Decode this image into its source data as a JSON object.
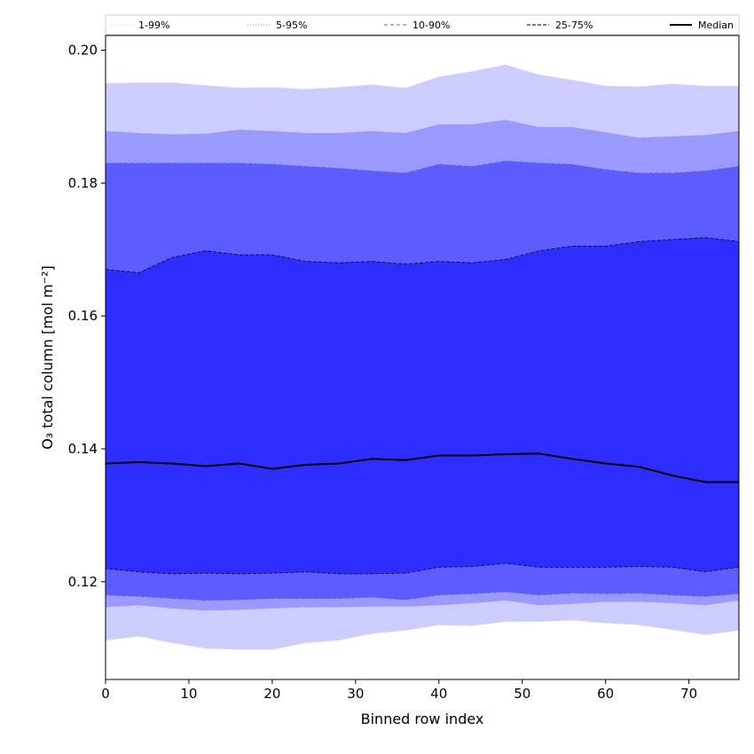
{
  "chart_data": {
    "type": "area",
    "title": "",
    "xlabel": "Binned row index",
    "ylabel": "O₃ total column [mol m⁻²]",
    "xlim": [
      0,
      76
    ],
    "ylim": [
      0.1053,
      0.2022
    ],
    "xticks": [
      0,
      10,
      20,
      30,
      40,
      50,
      60,
      70
    ],
    "yticks": [
      0.12,
      0.14,
      0.16,
      0.18,
      0.2
    ],
    "xtick_labels": [
      "0",
      "10",
      "20",
      "30",
      "40",
      "50",
      "60",
      "70"
    ],
    "ytick_labels": [
      "0.12",
      "0.14",
      "0.16",
      "0.18",
      "0.20"
    ],
    "grid": false,
    "legend_position": "top",
    "colors": {
      "band_1_99": "#ccccff",
      "band_5_95": "#9999ff",
      "band_10_90": "#5c5cff",
      "band_25_75": "#2d2dff",
      "median": "#000000"
    },
    "x": [
      0,
      4,
      8,
      12,
      16,
      20,
      24,
      28,
      32,
      36,
      40,
      44,
      48,
      52,
      56,
      60,
      64,
      68,
      72,
      76
    ],
    "series": [
      {
        "name": "1-99%",
        "lower": [
          0.1112,
          0.1118,
          0.1108,
          0.11,
          0.1098,
          0.1098,
          0.1108,
          0.1112,
          0.1122,
          0.1127,
          0.1135,
          0.1134,
          0.114,
          0.114,
          0.1142,
          0.1138,
          0.1135,
          0.1128,
          0.112,
          0.1127
        ],
        "upper": [
          0.195,
          0.1951,
          0.1951,
          0.1947,
          0.1943,
          0.1944,
          0.1941,
          0.1944,
          0.1948,
          0.1943,
          0.196,
          0.1968,
          0.1978,
          0.1963,
          0.1955,
          0.1946,
          0.1945,
          0.1949,
          0.1946,
          0.1946
        ]
      },
      {
        "name": "5-95%",
        "lower": [
          0.1162,
          0.1165,
          0.116,
          0.1157,
          0.1158,
          0.116,
          0.1162,
          0.1162,
          0.1163,
          0.1163,
          0.1165,
          0.1168,
          0.1172,
          0.1165,
          0.1167,
          0.117,
          0.117,
          0.1168,
          0.1165,
          0.1172
        ],
        "upper": [
          0.1878,
          0.1875,
          0.1873,
          0.1874,
          0.188,
          0.1878,
          0.1875,
          0.1875,
          0.1878,
          0.1875,
          0.1888,
          0.1888,
          0.1895,
          0.1884,
          0.1884,
          0.1876,
          0.1868,
          0.187,
          0.1872,
          0.1878
        ]
      },
      {
        "name": "10-90%",
        "lower": [
          0.118,
          0.1178,
          0.1175,
          0.1172,
          0.1173,
          0.1175,
          0.1175,
          0.1175,
          0.1177,
          0.1173,
          0.118,
          0.1182,
          0.1185,
          0.118,
          0.1183,
          0.1182,
          0.1183,
          0.118,
          0.1178,
          0.1182
        ],
        "upper": [
          0.183,
          0.183,
          0.183,
          0.183,
          0.183,
          0.1828,
          0.1825,
          0.1822,
          0.1818,
          0.1815,
          0.1828,
          0.1825,
          0.1833,
          0.183,
          0.1828,
          0.182,
          0.1815,
          0.1815,
          0.1818,
          0.1825
        ]
      },
      {
        "name": "25-75%",
        "lower": [
          0.122,
          0.1215,
          0.1212,
          0.1213,
          0.1212,
          0.1213,
          0.1215,
          0.1212,
          0.1212,
          0.1213,
          0.1222,
          0.1223,
          0.1228,
          0.1222,
          0.1222,
          0.1222,
          0.1223,
          0.1222,
          0.1215,
          0.1222
        ],
        "upper": [
          0.167,
          0.1665,
          0.1688,
          0.1698,
          0.1692,
          0.1692,
          0.1682,
          0.168,
          0.1682,
          0.1678,
          0.1682,
          0.168,
          0.1685,
          0.1698,
          0.1705,
          0.1705,
          0.1712,
          0.1715,
          0.1718,
          0.1712
        ]
      },
      {
        "name": "Median",
        "values": [
          0.1378,
          0.138,
          0.1378,
          0.1374,
          0.1378,
          0.137,
          0.1376,
          0.1378,
          0.1385,
          0.1383,
          0.139,
          0.139,
          0.1392,
          0.1393,
          0.1385,
          0.1378,
          0.1373,
          0.136,
          0.135,
          0.135
        ]
      }
    ]
  }
}
